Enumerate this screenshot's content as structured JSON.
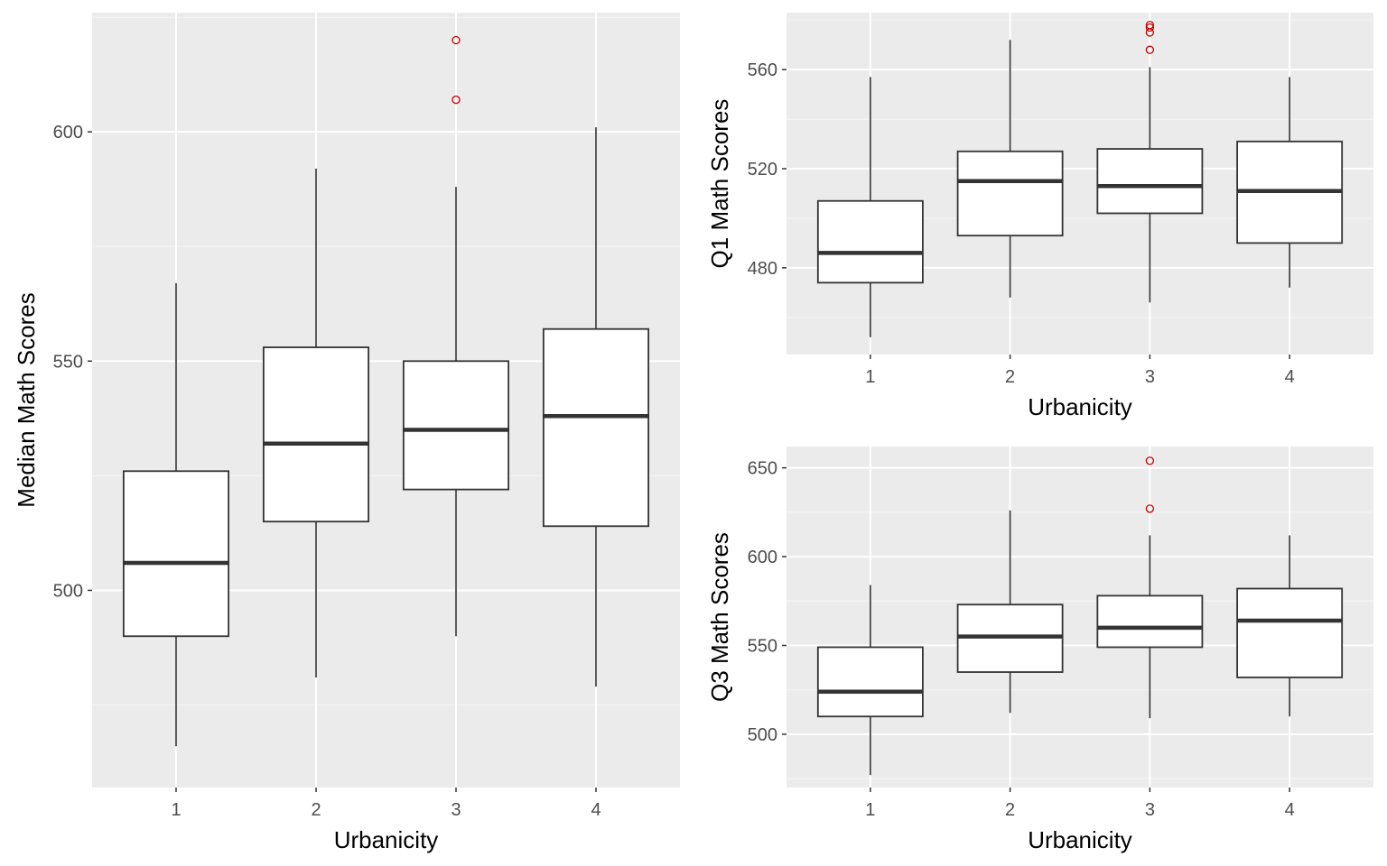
{
  "colors": {
    "panel_bg": "#ebebeb",
    "grid_major": "#ffffff",
    "grid_minor": "#f5f5f5",
    "box_fill": "#ffffff",
    "box_line": "#333333",
    "outlier": "#cc0000",
    "tick_text": "#4d4d4d"
  },
  "chart_data": [
    {
      "type": "boxplot",
      "xlabel": "Urbanicity",
      "ylabel": "Median Math Scores",
      "categories": [
        "1",
        "2",
        "3",
        "4"
      ],
      "ylim": [
        457,
        626
      ],
      "yticks": [
        500,
        550,
        600
      ],
      "yminor": [
        475,
        525,
        575,
        625
      ],
      "boxes": [
        {
          "category": "1",
          "lower_whisker": 466,
          "q1": 490,
          "median": 506,
          "q3": 526,
          "upper_whisker": 567,
          "outliers": []
        },
        {
          "category": "2",
          "lower_whisker": 481,
          "q1": 515,
          "median": 532,
          "q3": 553,
          "upper_whisker": 592,
          "outliers": []
        },
        {
          "category": "3",
          "lower_whisker": 490,
          "q1": 522,
          "median": 535,
          "q3": 550,
          "upper_whisker": 588,
          "outliers": [
            607,
            620
          ]
        },
        {
          "category": "4",
          "lower_whisker": 479,
          "q1": 514,
          "median": 538,
          "q3": 557,
          "upper_whisker": 601,
          "outliers": []
        }
      ]
    },
    {
      "type": "boxplot",
      "xlabel": "Urbanicity",
      "ylabel": "Q1 Math Scores",
      "categories": [
        "1",
        "2",
        "3",
        "4"
      ],
      "ylim": [
        445,
        583
      ],
      "yticks": [
        480,
        520,
        560
      ],
      "yminor": [
        460,
        500,
        540,
        580
      ],
      "boxes": [
        {
          "category": "1",
          "lower_whisker": 452,
          "q1": 474,
          "median": 486,
          "q3": 507,
          "upper_whisker": 557,
          "outliers": []
        },
        {
          "category": "2",
          "lower_whisker": 468,
          "q1": 493,
          "median": 515,
          "q3": 527,
          "upper_whisker": 572,
          "outliers": []
        },
        {
          "category": "3",
          "lower_whisker": 466,
          "q1": 502,
          "median": 513,
          "q3": 528,
          "upper_whisker": 561,
          "outliers": [
            568,
            575,
            577,
            578
          ]
        },
        {
          "category": "4",
          "lower_whisker": 472,
          "q1": 490,
          "median": 511,
          "q3": 531,
          "upper_whisker": 557,
          "outliers": []
        }
      ]
    },
    {
      "type": "boxplot",
      "xlabel": "Urbanicity",
      "ylabel": "Q3 Math Scores",
      "categories": [
        "1",
        "2",
        "3",
        "4"
      ],
      "ylim": [
        470,
        662
      ],
      "yticks": [
        500,
        550,
        600,
        650
      ],
      "yminor": [
        475,
        525,
        575,
        625
      ],
      "boxes": [
        {
          "category": "1",
          "lower_whisker": 477,
          "q1": 510,
          "median": 524,
          "q3": 549,
          "upper_whisker": 584,
          "outliers": []
        },
        {
          "category": "2",
          "lower_whisker": 512,
          "q1": 535,
          "median": 555,
          "q3": 573,
          "upper_whisker": 626,
          "outliers": []
        },
        {
          "category": "3",
          "lower_whisker": 509,
          "q1": 549,
          "median": 560,
          "q3": 578,
          "upper_whisker": 612,
          "outliers": [
            627,
            654
          ]
        },
        {
          "category": "4",
          "lower_whisker": 510,
          "q1": 532,
          "median": 564,
          "q3": 582,
          "upper_whisker": 612,
          "outliers": []
        }
      ]
    }
  ]
}
